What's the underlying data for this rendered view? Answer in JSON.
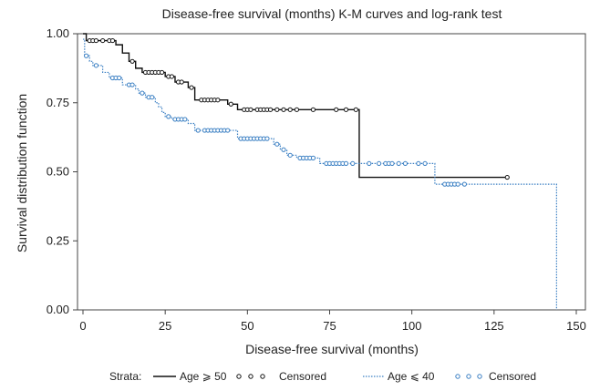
{
  "chart_data": {
    "type": "line",
    "title": "Disease-free survival (months) K-M curves and log-rank test",
    "xlabel": "Disease-free survival (months)",
    "ylabel": "Survival distribution function",
    "xlim": [
      0,
      150
    ],
    "ylim": [
      0,
      1
    ],
    "xticks": [
      "0",
      "25",
      "50",
      "75",
      "100",
      "125",
      "150"
    ],
    "yticks": [
      "0.00",
      "0.25",
      "0.50",
      "0.75",
      "1.00"
    ],
    "grid": false,
    "legend": {
      "position": "bottom",
      "prefix": "Strata:",
      "line1_label": "Age ⩾ 50",
      "censored1_label": "Censored",
      "line2_label": "Age ⩽ 40",
      "censored2_label": "Censored"
    },
    "series": [
      {
        "name": "Age ⩾ 50",
        "color": "#111111",
        "style": "solid",
        "steps": [
          [
            0,
            1.0
          ],
          [
            1,
            0.975
          ],
          [
            10,
            0.96
          ],
          [
            12,
            0.93
          ],
          [
            14,
            0.9
          ],
          [
            16,
            0.875
          ],
          [
            18,
            0.86
          ],
          [
            25,
            0.845
          ],
          [
            28,
            0.825
          ],
          [
            32,
            0.805
          ],
          [
            34,
            0.76
          ],
          [
            44,
            0.745
          ],
          [
            47,
            0.725
          ],
          [
            84,
            0.48
          ],
          [
            129,
            0.48
          ]
        ],
        "censored": [
          2,
          3,
          4,
          6,
          8,
          9,
          15,
          19,
          20,
          21,
          22,
          23,
          24,
          26,
          27,
          29,
          30,
          33,
          36,
          37,
          38,
          39,
          40,
          41,
          45,
          49,
          50,
          51,
          53,
          54,
          55,
          56,
          57,
          59,
          61,
          63,
          65,
          70,
          77,
          80,
          83,
          129
        ]
      },
      {
        "name": "Age ⩽ 40",
        "color": "#3a7fc3",
        "style": "dotted",
        "steps": [
          [
            0,
            0.98
          ],
          [
            0.5,
            0.92
          ],
          [
            2,
            0.9
          ],
          [
            3,
            0.885
          ],
          [
            6,
            0.86
          ],
          [
            8,
            0.84
          ],
          [
            12,
            0.815
          ],
          [
            16,
            0.8
          ],
          [
            17,
            0.785
          ],
          [
            19,
            0.77
          ],
          [
            22,
            0.75
          ],
          [
            23,
            0.735
          ],
          [
            24,
            0.715
          ],
          [
            25,
            0.7
          ],
          [
            27,
            0.69
          ],
          [
            32,
            0.675
          ],
          [
            34,
            0.65
          ],
          [
            47,
            0.62
          ],
          [
            58,
            0.6
          ],
          [
            60,
            0.58
          ],
          [
            62,
            0.56
          ],
          [
            65,
            0.55
          ],
          [
            72,
            0.53
          ],
          [
            107,
            0.455
          ],
          [
            144,
            0.0
          ]
        ],
        "censored": [
          1,
          4,
          9,
          10,
          11,
          14,
          15,
          18,
          20,
          21,
          26,
          28,
          29,
          30,
          31,
          35,
          37,
          38,
          39,
          40,
          41,
          42,
          43,
          44,
          48,
          49,
          50,
          51,
          52,
          53,
          54,
          55,
          56,
          59,
          61,
          63,
          66,
          67,
          68,
          69,
          70,
          74,
          75,
          76,
          77,
          78,
          79,
          80,
          82,
          87,
          90,
          92,
          93,
          94,
          96,
          98,
          102,
          104,
          110,
          111,
          112,
          113,
          114,
          116
        ]
      }
    ]
  }
}
